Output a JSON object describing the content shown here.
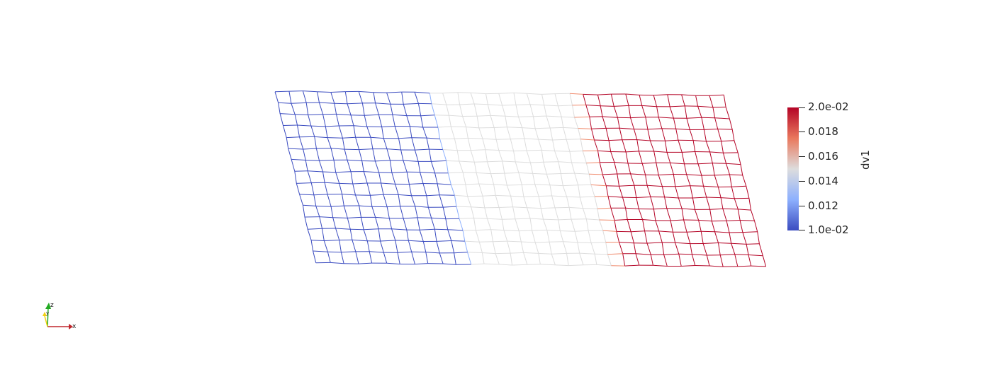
{
  "scene": {
    "mesh": {
      "columns": 32,
      "rows": 15,
      "color_blue": "#3b4cc0",
      "color_neutral": "#dddddd",
      "color_red": "#b40426"
    },
    "colorbar": {
      "title": "dv1",
      "labels": [
        "2.0e-02",
        "0.018",
        "0.016",
        "0.014",
        "0.012",
        "1.0e-02"
      ],
      "min": 0.01,
      "max": 0.02
    },
    "orientation_axes": {
      "x_label": "x",
      "y_label": "y",
      "z_label": "z",
      "x_color": "#c0272d",
      "y_color": "#f0d010",
      "z_color": "#22aa22"
    }
  }
}
